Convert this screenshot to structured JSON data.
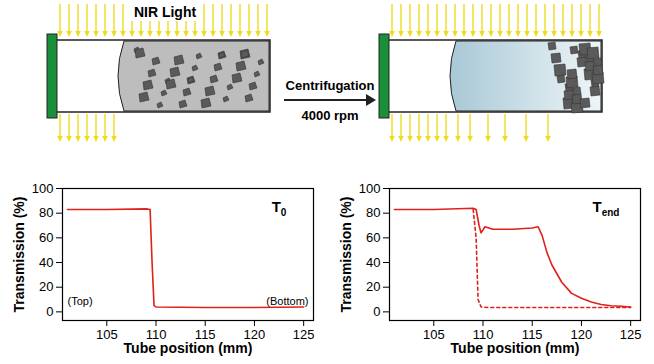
{
  "diagram": {
    "light_label": "NIR Light",
    "process_label": "Centrifugation",
    "process_condition": "4000 rpm"
  },
  "chart_data": [
    {
      "type": "line",
      "title": {
        "text": "T",
        "subscript": "0"
      },
      "x_label": "Tube position (mm)",
      "y_label": "Transmission (%)",
      "xlim": [
        100.5,
        126
      ],
      "xticks": [
        105,
        110,
        115,
        120,
        125
      ],
      "ylim": [
        -7,
        100
      ],
      "yticks": [
        0,
        20,
        40,
        60,
        80,
        100
      ],
      "annotations": [
        "(Top)",
        "(Bottom)"
      ],
      "series": [
        {
          "color": "#e0201b",
          "line_style": "solid",
          "x": [
            101,
            105,
            109,
            109.4,
            109.6,
            109.8,
            110,
            115,
            120,
            125
          ],
          "values": [
            83,
            83,
            83.5,
            83,
            40,
            5,
            4,
            3.5,
            3.5,
            4
          ]
        }
      ]
    },
    {
      "type": "line",
      "title": {
        "text": "T",
        "subscript": "end"
      },
      "x_label": "Tube position (mm)",
      "y_label": "Transmission (%)",
      "xlim": [
        100.5,
        126
      ],
      "xticks": [
        105,
        110,
        115,
        120,
        125
      ],
      "ylim": [
        -7,
        100
      ],
      "yticks": [
        0,
        20,
        40,
        60,
        80,
        100
      ],
      "series": [
        {
          "color": "#e0201b",
          "line_style": "solid",
          "x": [
            101,
            105,
            109,
            109.3,
            109.6,
            109.8,
            110.2,
            111,
            113,
            115,
            115.6,
            116,
            116.5,
            117,
            118,
            119,
            120,
            121,
            122,
            123,
            124,
            125
          ],
          "values": [
            83,
            83,
            84,
            83,
            70,
            64,
            69,
            67,
            67,
            68,
            69,
            62,
            48,
            38,
            24,
            15,
            11,
            8,
            6,
            5,
            4.5,
            4
          ]
        },
        {
          "color": "#e0201b",
          "line_style": "dashed",
          "x": [
            109,
            109.3,
            109.5,
            109.8,
            110.5,
            115,
            120,
            125
          ],
          "values": [
            83,
            60,
            10,
            4,
            3.5,
            3.5,
            3.5,
            3.5
          ]
        }
      ]
    }
  ]
}
